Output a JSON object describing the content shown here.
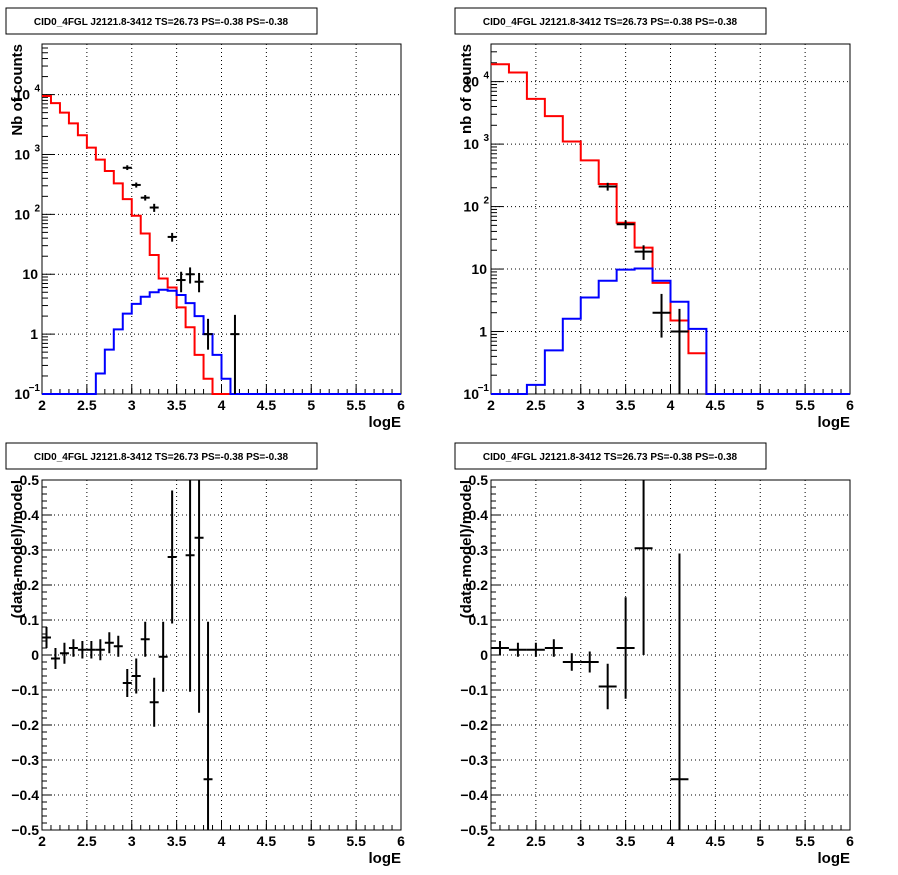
{
  "chart_data": [
    {
      "type": "line",
      "title": "CID0_4FGL J2121.8-3412 TS=26.73 PS=-0.38 PS=-0.38",
      "xlabel": "logE",
      "ylabel": "Nb of counts",
      "xlim": [
        2,
        6
      ],
      "ylim": [
        0.1,
        70000
      ],
      "yscale": "log",
      "grid": true,
      "x_ticks": [
        "2",
        "2.5",
        "3",
        "3.5",
        "4",
        "4.5",
        "5",
        "5.5",
        "6"
      ],
      "y_ticks": [
        {
          "base": "10",
          "exp": "−1",
          "v": 0.1
        },
        {
          "base": "1",
          "exp": "",
          "v": 1
        },
        {
          "base": "10",
          "exp": "",
          "v": 10
        },
        {
          "base": "10",
          "exp": "2",
          "v": 100
        },
        {
          "base": "10",
          "exp": "3",
          "v": 1000
        },
        {
          "base": "10",
          "exp": "4",
          "v": 10000
        }
      ],
      "bin_edges": [
        2.0,
        2.1,
        2.2,
        2.3,
        2.4,
        2.5,
        2.6,
        2.7,
        2.8,
        2.9,
        3.0,
        3.1,
        3.2,
        3.3,
        3.4,
        3.5,
        3.6,
        3.7,
        3.8,
        3.9,
        4.0,
        4.1,
        4.2,
        4.3,
        4.4,
        4.5,
        6.0
      ],
      "series": [
        {
          "color": "#ff0000",
          "style": "step",
          "values": [
            9500,
            7200,
            5000,
            3300,
            2100,
            1300,
            820,
            530,
            330,
            180,
            95,
            48,
            21,
            8.5,
            6,
            2.8,
            1.3,
            0.45,
            0.18,
            0.1,
            0.1,
            0.1,
            0.1,
            0.1,
            0.1,
            0.1
          ]
        },
        {
          "color": "#0000ff",
          "style": "step",
          "values": [
            0.1,
            0.1,
            0.1,
            0.1,
            0.1,
            0.1,
            0.22,
            0.55,
            1.2,
            2.2,
            3.2,
            4.2,
            5,
            5.5,
            5.3,
            4.5,
            3.3,
            2,
            1,
            0.45,
            0.18,
            0.1,
            0.1,
            0.1,
            0.1,
            0.1
          ]
        },
        {
          "color": "#000000",
          "style": "errorbar",
          "x": [
            2.95,
            3.05,
            3.15,
            3.25,
            3.45,
            3.55,
            3.65,
            3.75,
            3.85,
            4.15
          ],
          "xerr": [
            0.05,
            0.05,
            0.05,
            0.05,
            0.05,
            0.05,
            0.05,
            0.05,
            0.05,
            0.05
          ],
          "y": [
            600,
            310,
            190,
            130,
            42,
            8,
            10,
            7.5,
            1,
            1
          ],
          "ylo": [
            550,
            280,
            170,
            110,
            35,
            5,
            7,
            5,
            0.55,
            0.1
          ],
          "yhi": [
            660,
            340,
            210,
            150,
            49,
            11,
            13,
            10.5,
            1.8,
            2.1
          ]
        }
      ]
    },
    {
      "type": "line",
      "title": "CID0_4FGL J2121.8-3412 TS=26.73 PS=-0.38 PS=-0.38",
      "xlabel": "logE",
      "ylabel": "nb of counts",
      "xlim": [
        2,
        6
      ],
      "ylim": [
        0.1,
        40000
      ],
      "yscale": "log",
      "grid": true,
      "x_ticks": [
        "2",
        "2.5",
        "3",
        "3.5",
        "4",
        "4.5",
        "5",
        "5.5",
        "6"
      ],
      "y_ticks": [
        {
          "base": "10",
          "exp": "−1",
          "v": 0.1
        },
        {
          "base": "1",
          "exp": "",
          "v": 1
        },
        {
          "base": "10",
          "exp": "",
          "v": 10
        },
        {
          "base": "10",
          "exp": "2",
          "v": 100
        },
        {
          "base": "10",
          "exp": "3",
          "v": 1000
        },
        {
          "base": "10",
          "exp": "4",
          "v": 10000
        }
      ],
      "bin_edges": [
        2.0,
        2.2,
        2.4,
        2.6,
        2.8,
        3.0,
        3.2,
        3.4,
        3.6,
        3.8,
        4.0,
        4.2,
        4.4,
        6.0
      ],
      "series": [
        {
          "color": "#ff0000",
          "style": "step",
          "values": [
            19000,
            14000,
            5300,
            2800,
            1100,
            550,
            230,
            55,
            22,
            6,
            1.5,
            0.45,
            0.1
          ]
        },
        {
          "color": "#0000ff",
          "style": "step",
          "values": [
            0.1,
            0.1,
            0.14,
            0.5,
            1.6,
            3.5,
            6.5,
            9.8,
            10.2,
            6.5,
            3,
            1.1,
            0.1
          ]
        },
        {
          "color": "#000000",
          "style": "errorbar",
          "x": [
            3.3,
            3.5,
            3.7,
            3.9,
            4.1
          ],
          "xerr": [
            0.1,
            0.1,
            0.1,
            0.1,
            0.1
          ],
          "y": [
            210,
            52,
            19,
            2,
            1
          ],
          "ylo": [
            180,
            44,
            14,
            0.8,
            0.1
          ],
          "yhi": [
            240,
            60,
            24,
            4,
            2.3
          ]
        }
      ]
    },
    {
      "type": "scatter",
      "title": "CID0_4FGL J2121.8-3412 TS=26.73 PS=-0.38 PS=-0.38",
      "xlabel": "logE",
      "ylabel": "(data-model)/model",
      "xlim": [
        2,
        6
      ],
      "ylim": [
        -0.5,
        0.5
      ],
      "yscale": "linear",
      "grid": true,
      "x_ticks": [
        "2",
        "2.5",
        "3",
        "3.5",
        "4",
        "4.5",
        "5",
        "5.5",
        "6"
      ],
      "y_ticks": [
        "−0.5",
        "−0.4",
        "−0.3",
        "−0.2",
        "−0.1",
        "0",
        "0.1",
        "0.2",
        "0.3",
        "0.4",
        "0.5"
      ],
      "series": [
        {
          "color": "#000000",
          "style": "errorbar",
          "x": [
            2.05,
            2.15,
            2.25,
            2.35,
            2.45,
            2.55,
            2.65,
            2.75,
            2.85,
            2.95,
            3.05,
            3.15,
            3.25,
            3.35,
            3.45,
            3.65,
            3.75,
            3.85
          ],
          "xerr": [
            0.05,
            0.05,
            0.05,
            0.05,
            0.05,
            0.05,
            0.05,
            0.05,
            0.05,
            0.05,
            0.05,
            0.05,
            0.05,
            0.05,
            0.05,
            0.05,
            0.05,
            0.05
          ],
          "y": [
            0.05,
            -0.01,
            0.005,
            0.02,
            0.015,
            0.015,
            0.015,
            0.035,
            0.025,
            -0.08,
            -0.06,
            0.045,
            -0.135,
            -0.005,
            0.28,
            0.285,
            0.335,
            -0.355
          ],
          "yerr": [
            0.03,
            0.03,
            0.03,
            0.025,
            0.025,
            0.025,
            0.03,
            0.03,
            0.03,
            0.04,
            0.05,
            0.05,
            0.07,
            0.1,
            0.19,
            0.39,
            0.5,
            0.45
          ]
        }
      ]
    },
    {
      "type": "scatter",
      "title": "CID0_4FGL J2121.8-3412 TS=26.73 PS=-0.38 PS=-0.38",
      "xlabel": "logE",
      "ylabel": "(data-model)/model",
      "xlim": [
        2,
        6
      ],
      "ylim": [
        -0.5,
        0.5
      ],
      "yscale": "linear",
      "grid": true,
      "x_ticks": [
        "2",
        "2.5",
        "3",
        "3.5",
        "4",
        "4.5",
        "5",
        "5.5",
        "6"
      ],
      "y_ticks": [
        "−0.5",
        "−0.4",
        "−0.3",
        "−0.2",
        "−0.1",
        "0",
        "0.1",
        "0.2",
        "0.3",
        "0.4",
        "0.5"
      ],
      "series": [
        {
          "color": "#000000",
          "style": "errorbar",
          "x": [
            2.1,
            2.3,
            2.5,
            2.7,
            2.9,
            3.1,
            3.3,
            3.5,
            3.7,
            4.1
          ],
          "xerr": [
            0.1,
            0.1,
            0.1,
            0.1,
            0.1,
            0.1,
            0.1,
            0.1,
            0.1,
            0.1
          ],
          "y": [
            0.02,
            0.015,
            0.015,
            0.02,
            -0.02,
            -0.02,
            -0.09,
            0.02,
            0.305,
            -0.355
          ],
          "yerr": [
            0.02,
            0.02,
            0.02,
            0.025,
            0.025,
            0.03,
            0.065,
            0.145,
            0.305,
            0.645
          ]
        }
      ]
    }
  ]
}
